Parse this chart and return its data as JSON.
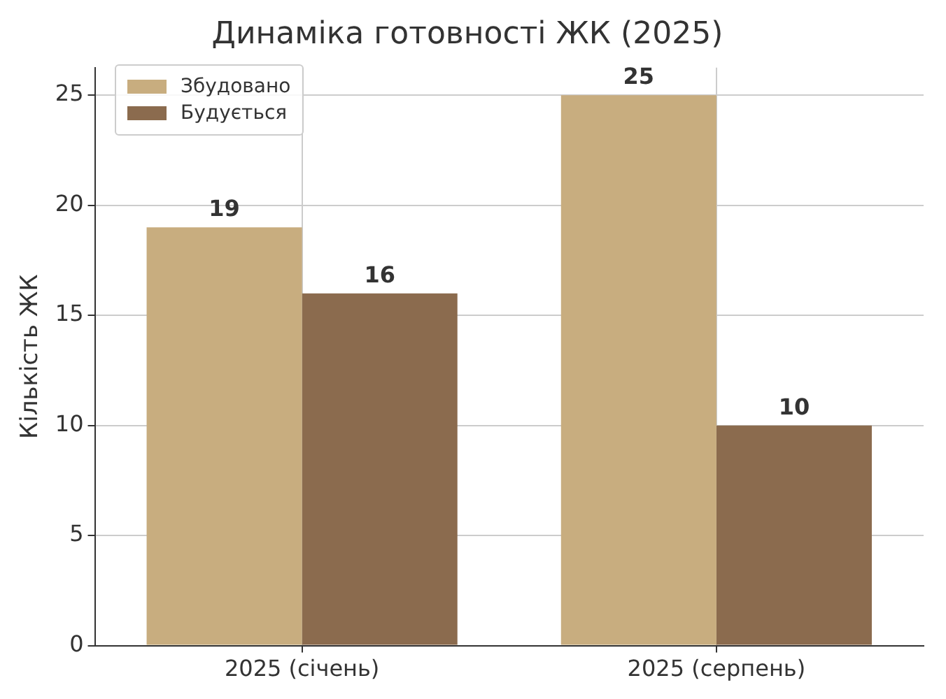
{
  "chart_data": {
    "type": "bar",
    "title": "Динаміка готовності ЖК (2025)",
    "ylabel": "Кількість ЖК",
    "categories": [
      "2025 (січень)",
      "2025 (серпень)"
    ],
    "series": [
      {
        "name": "Збудовано",
        "color": "#c8ad7f",
        "values": [
          19,
          25
        ]
      },
      {
        "name": "Будується",
        "color": "#8b6b4e",
        "values": [
          16,
          10
        ]
      }
    ],
    "ylim": [
      0,
      26.25
    ],
    "yticks": [
      0,
      5,
      10,
      15,
      20,
      25
    ],
    "grid": true,
    "legend": "top left",
    "data_labels": true
  }
}
